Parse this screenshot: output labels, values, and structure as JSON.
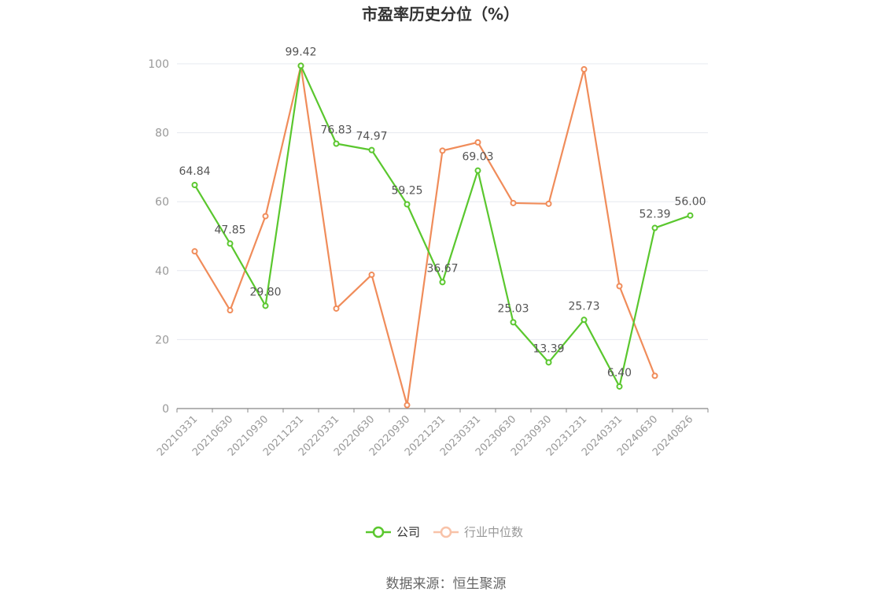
{
  "chart_data": {
    "type": "line",
    "title": "市盈率历史分位（%）",
    "x": [
      "20210331",
      "20210630",
      "20210930",
      "20211231",
      "20220331",
      "20220630",
      "20220930",
      "20221231",
      "20230331",
      "20230630",
      "20230930",
      "20231231",
      "20240331",
      "20240630",
      "20240826"
    ],
    "ylim": [
      0,
      100
    ],
    "yticks": [
      0,
      20,
      40,
      60,
      80,
      100
    ],
    "grid": true,
    "legend_position": "bottom",
    "series": [
      {
        "name": "公司",
        "color": "#5ac72e",
        "values": [
          64.84,
          47.85,
          29.8,
          99.42,
          76.83,
          74.97,
          59.25,
          36.67,
          69.03,
          25.03,
          13.39,
          25.73,
          6.4,
          52.39,
          56.0
        ],
        "labels": [
          "64.84",
          "47.85",
          "29.80",
          "99.42",
          "76.83",
          "74.97",
          "59.25",
          "36.67",
          "69.03",
          "25.03",
          "13.39",
          "25.73",
          "6.40",
          "52.39",
          "56.00"
        ]
      },
      {
        "name": "行业中位数",
        "color": "#f08c5a",
        "values": [
          45.6,
          28.5,
          55.8,
          99.4,
          29.0,
          38.8,
          1.0,
          74.8,
          77.2,
          59.6,
          59.4,
          98.4,
          35.5,
          9.5,
          null
        ]
      }
    ]
  },
  "source_text": "数据来源：恒生聚源"
}
